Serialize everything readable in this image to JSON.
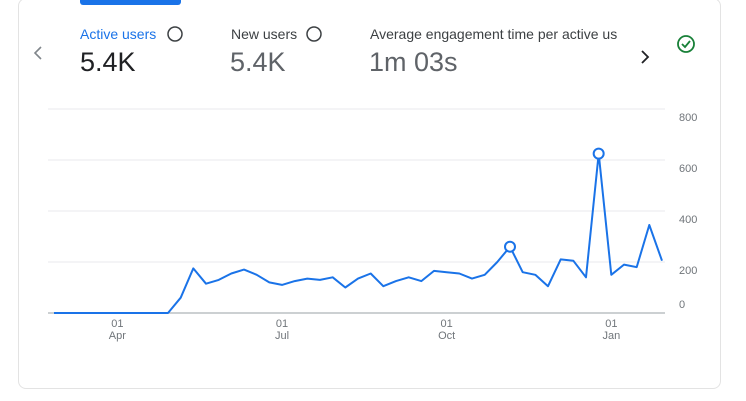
{
  "tabs": [
    {
      "label": "Active users",
      "value": "5.4K"
    },
    {
      "label": "New users",
      "value": "5.4K"
    },
    {
      "label": "Average engagement time per active us",
      "value": "1m 03s"
    }
  ],
  "chart_data": {
    "type": "line",
    "color": "#1a73e8",
    "categories": [
      null,
      null,
      null,
      null,
      null,
      "01\nApr",
      null,
      null,
      null,
      null,
      null,
      null,
      null,
      null,
      null,
      null,
      null,
      null,
      "01\nJul",
      null,
      null,
      null,
      null,
      null,
      null,
      null,
      null,
      null,
      null,
      null,
      null,
      "01\nOct",
      null,
      null,
      null,
      null,
      null,
      null,
      null,
      null,
      null,
      null,
      null,
      null,
      "01\nJan",
      null,
      null,
      null,
      null
    ],
    "values": [
      0,
      0,
      0,
      0,
      0,
      0,
      0,
      0,
      0,
      0,
      60,
      175,
      115,
      130,
      155,
      170,
      150,
      120,
      110,
      125,
      135,
      130,
      140,
      100,
      135,
      155,
      105,
      125,
      140,
      125,
      165,
      160,
      155,
      135,
      150,
      200,
      260,
      160,
      150,
      105,
      210,
      205,
      140,
      625,
      150,
      190,
      180,
      345,
      205
    ],
    "markers": [
      36,
      43
    ],
    "ylim": [
      0,
      800
    ],
    "yticks": [
      0,
      200,
      400,
      600,
      800
    ],
    "grid": true
  }
}
